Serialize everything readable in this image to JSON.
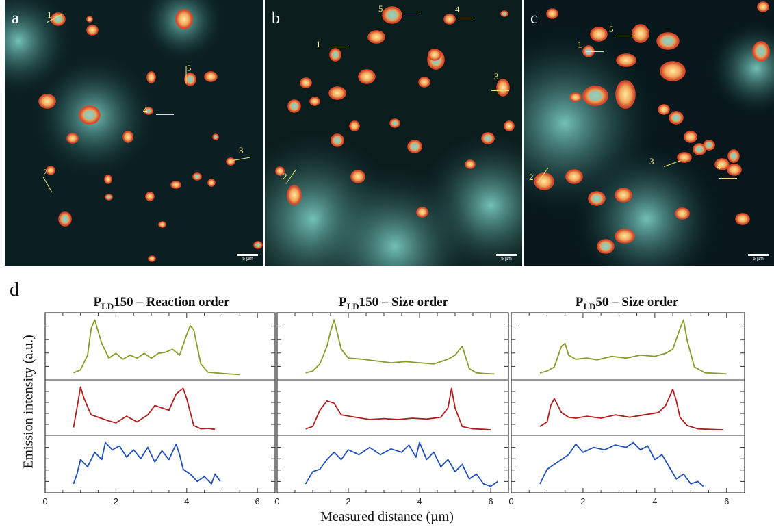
{
  "panels": [
    {
      "label": "a",
      "scale": "5 µm",
      "bg": "#0b1f22",
      "markers": [
        "1",
        "2",
        "3",
        "4",
        "5"
      ]
    },
    {
      "label": "b",
      "scale": "5 µm",
      "bg": "#0b1c1c",
      "markers": [
        "1",
        "2",
        "3",
        "4",
        "5"
      ]
    },
    {
      "label": "c",
      "scale": "5 µm",
      "bg": "#07171b",
      "markers": [
        "1",
        "2",
        "3",
        "4",
        "5"
      ]
    }
  ],
  "figure_d": {
    "label": "d",
    "titles": [
      {
        "prefix": "P",
        "sub": "LD",
        "rest": "150 – Reaction order"
      },
      {
        "prefix": "P",
        "sub": "LD",
        "rest": "150 – Size order"
      },
      {
        "prefix": "P",
        "sub": "LD",
        "rest": "50 – Size order"
      }
    ],
    "ylabel": "Emission intensity (a.u.)",
    "xlabel": "Measured distance (µm)"
  },
  "colors": {
    "olive": "#8b9a2a",
    "red": "#b01c1c",
    "blue": "#1f4fb8"
  },
  "chart_data": {
    "type": "line",
    "xlim": [
      0,
      6.5
    ],
    "xticks": [
      "0",
      "2",
      "4",
      "6"
    ],
    "ylim": [
      0,
      1
    ],
    "panels": [
      {
        "title": "PLD150 – Reaction order",
        "series": [
          {
            "color": "olive",
            "x": [
              0.8,
              1.0,
              1.2,
              1.3,
              1.4,
              1.6,
              1.8,
              2.0,
              2.2,
              2.4,
              2.6,
              2.8,
              3.0,
              3.2,
              3.4,
              3.6,
              3.8,
              4.0,
              4.1,
              4.2,
              4.4,
              4.6,
              4.8,
              5.0,
              5.2,
              5.5
            ],
            "y": [
              0.05,
              0.1,
              0.35,
              0.8,
              0.95,
              0.55,
              0.3,
              0.38,
              0.28,
              0.35,
              0.3,
              0.38,
              0.3,
              0.38,
              0.4,
              0.45,
              0.35,
              0.7,
              0.85,
              0.78,
              0.2,
              0.06,
              0.05,
              0.04,
              0.03,
              0.02
            ]
          },
          {
            "color": "red",
            "x": [
              0.8,
              0.9,
              1.0,
              1.1,
              1.3,
              1.5,
              1.8,
              2.0,
              2.3,
              2.6,
              2.9,
              3.1,
              3.3,
              3.5,
              3.7,
              3.9,
              4.0,
              4.2,
              4.4,
              4.6,
              4.8
            ],
            "y": [
              0.08,
              0.5,
              0.95,
              0.7,
              0.35,
              0.3,
              0.22,
              0.18,
              0.32,
              0.2,
              0.35,
              0.55,
              0.5,
              0.45,
              0.8,
              0.92,
              0.7,
              0.12,
              0.05,
              0.06,
              0.04
            ]
          },
          {
            "color": "blue",
            "x": [
              0.8,
              0.9,
              1.0,
              1.2,
              1.4,
              1.6,
              1.7,
              1.9,
              2.1,
              2.3,
              2.5,
              2.7,
              2.9,
              3.1,
              3.3,
              3.5,
              3.7,
              3.8,
              3.9,
              4.1,
              4.3,
              4.5,
              4.7,
              4.8,
              4.95
            ],
            "y": [
              0.1,
              0.3,
              0.6,
              0.45,
              0.75,
              0.6,
              0.95,
              0.8,
              0.88,
              0.65,
              0.8,
              0.62,
              0.85,
              0.55,
              0.78,
              0.6,
              0.92,
              0.7,
              0.4,
              0.3,
              0.15,
              0.25,
              0.1,
              0.3,
              0.15
            ]
          }
        ]
      },
      {
        "title": "PLD150 – Size order",
        "series": [
          {
            "color": "olive",
            "x": [
              0.8,
              1.0,
              1.2,
              1.4,
              1.5,
              1.6,
              1.8,
              2.0,
              2.4,
              2.8,
              3.2,
              3.6,
              4.0,
              4.4,
              4.8,
              5.0,
              5.2,
              5.4,
              5.6,
              5.8,
              6.1
            ],
            "y": [
              0.05,
              0.08,
              0.2,
              0.5,
              0.75,
              0.95,
              0.45,
              0.3,
              0.28,
              0.25,
              0.22,
              0.24,
              0.22,
              0.2,
              0.28,
              0.35,
              0.5,
              0.12,
              0.05,
              0.04,
              0.03
            ]
          },
          {
            "color": "red",
            "x": [
              0.8,
              1.0,
              1.2,
              1.4,
              1.6,
              1.8,
              2.2,
              2.6,
              3.0,
              3.4,
              3.8,
              4.2,
              4.6,
              4.8,
              4.9,
              5.0,
              5.2,
              5.5,
              5.8,
              6.0
            ],
            "y": [
              0.05,
              0.1,
              0.45,
              0.65,
              0.6,
              0.35,
              0.3,
              0.25,
              0.27,
              0.25,
              0.28,
              0.26,
              0.3,
              0.5,
              0.92,
              0.5,
              0.1,
              0.05,
              0.04,
              0.03
            ]
          },
          {
            "color": "blue",
            "x": [
              0.8,
              1.0,
              1.2,
              1.4,
              1.6,
              1.8,
              2.0,
              2.3,
              2.6,
              2.9,
              3.2,
              3.5,
              3.7,
              3.9,
              4.0,
              4.2,
              4.4,
              4.6,
              4.8,
              5.0,
              5.2,
              5.4,
              5.6,
              5.8,
              6.0,
              6.2
            ],
            "y": [
              0.1,
              0.35,
              0.4,
              0.6,
              0.75,
              0.6,
              0.8,
              0.7,
              0.85,
              0.7,
              0.82,
              0.75,
              0.9,
              0.65,
              0.95,
              0.6,
              0.75,
              0.45,
              0.6,
              0.35,
              0.5,
              0.2,
              0.3,
              0.1,
              0.05,
              0.15
            ]
          }
        ]
      },
      {
        "title": "PLD50 – Size order",
        "series": [
          {
            "color": "olive",
            "x": [
              0.8,
              1.0,
              1.2,
              1.4,
              1.5,
              1.6,
              1.8,
              2.1,
              2.4,
              2.8,
              3.2,
              3.6,
              4.0,
              4.3,
              4.5,
              4.7,
              4.8,
              4.9,
              5.1,
              5.4,
              5.8,
              6.0
            ],
            "y": [
              0.05,
              0.08,
              0.15,
              0.5,
              0.55,
              0.35,
              0.28,
              0.3,
              0.27,
              0.33,
              0.3,
              0.35,
              0.33,
              0.38,
              0.45,
              0.8,
              0.95,
              0.6,
              0.15,
              0.05,
              0.04,
              0.03
            ]
          },
          {
            "color": "red",
            "x": [
              0.8,
              1.0,
              1.1,
              1.2,
              1.4,
              1.6,
              1.8,
              2.1,
              2.5,
              2.9,
              3.3,
              3.7,
              4.1,
              4.3,
              4.5,
              4.6,
              4.7,
              4.9,
              5.2,
              5.5,
              5.9
            ],
            "y": [
              0.1,
              0.2,
              0.55,
              0.7,
              0.4,
              0.3,
              0.28,
              0.32,
              0.28,
              0.35,
              0.3,
              0.35,
              0.4,
              0.55,
              0.9,
              0.65,
              0.3,
              0.12,
              0.05,
              0.04,
              0.03
            ]
          },
          {
            "color": "blue",
            "x": [
              0.8,
              1.0,
              1.2,
              1.4,
              1.6,
              1.8,
              2.0,
              2.3,
              2.6,
              2.9,
              3.2,
              3.4,
              3.6,
              3.8,
              4.0,
              4.2,
              4.4,
              4.6,
              4.8,
              5.0,
              5.2,
              5.35
            ],
            "y": [
              0.1,
              0.4,
              0.5,
              0.6,
              0.7,
              0.92,
              0.75,
              0.85,
              0.8,
              0.9,
              0.85,
              0.95,
              0.8,
              0.88,
              0.6,
              0.7,
              0.45,
              0.2,
              0.3,
              0.1,
              0.15,
              0.05
            ]
          }
        ]
      }
    ]
  }
}
